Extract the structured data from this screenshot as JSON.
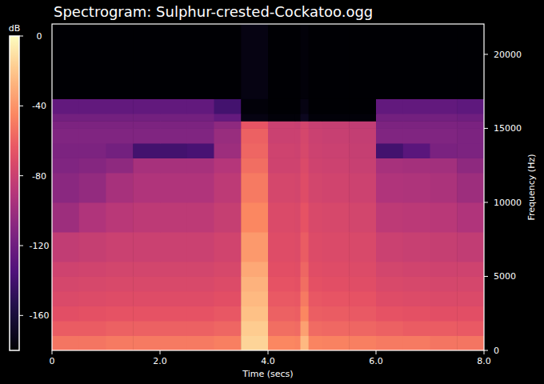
{
  "chart_data": {
    "type": "heatmap",
    "title": "Spectrogram: Sulphur-crested-Cockatoo.ogg",
    "x_label": "Time (secs)",
    "y_label": "Frequency (Hz)",
    "xlim": [
      0,
      8
    ],
    "ylim": [
      0,
      22050
    ],
    "xticks": [
      0,
      {
        "value": 2,
        "label": "2.0"
      },
      {
        "value": 4,
        "label": "4.0"
      },
      {
        "value": 6,
        "label": "6.0"
      },
      {
        "value": 8,
        "label": "8.0"
      }
    ],
    "yticks": [
      0,
      5000,
      10000,
      15000,
      20000
    ],
    "x_edges": [
      0,
      0.5,
      1,
      1.5,
      2,
      2.5,
      3,
      3.5,
      4,
      4.5,
      4.6,
      4.75,
      5,
      5.5,
      6,
      6.5,
      7,
      7.5,
      8
    ],
    "y_edges": [
      0,
      1000,
      2000,
      3000,
      4000,
      5000,
      6000,
      8000,
      10000,
      12000,
      13000,
      14000,
      15000,
      15500,
      16000,
      17000,
      22050
    ],
    "cells": [
      [
        -52,
        -52,
        -50,
        -50,
        -50,
        -50,
        -48,
        -15,
        -45,
        -46,
        -25,
        -46,
        -47,
        -48,
        -50,
        -50,
        -52,
        -52
      ],
      [
        -62,
        -62,
        -60,
        -60,
        -60,
        -60,
        -58,
        -18,
        -55,
        -56,
        -35,
        -56,
        -57,
        -58,
        -60,
        -62,
        -62,
        -63
      ],
      [
        -68,
        -67,
        -66,
        -66,
        -66,
        -66,
        -64,
        -22,
        -60,
        -61,
        -45,
        -61,
        -62,
        -63,
        -66,
        -67,
        -68,
        -68
      ],
      [
        -72,
        -71,
        -70,
        -70,
        -70,
        -70,
        -68,
        -25,
        -63,
        -64,
        -50,
        -64,
        -65,
        -66,
        -70,
        -71,
        -72,
        -72
      ],
      [
        -75,
        -74,
        -73,
        -73,
        -73,
        -73,
        -71,
        -28,
        -66,
        -67,
        -55,
        -67,
        -68,
        -69,
        -73,
        -74,
        -75,
        -75
      ],
      [
        -78,
        -77,
        -76,
        -76,
        -76,
        -76,
        -74,
        -32,
        -68,
        -69,
        -58,
        -69,
        -70,
        -71,
        -76,
        -77,
        -78,
        -78
      ],
      [
        -84,
        -82,
        -80,
        -80,
        -80,
        -80,
        -77,
        -38,
        -70,
        -71,
        -62,
        -71,
        -72,
        -73,
        -80,
        -81,
        -82,
        -84
      ],
      [
        -100,
        -92,
        -88,
        -86,
        -86,
        -86,
        -82,
        -45,
        -72,
        -73,
        -66,
        -73,
        -74,
        -76,
        -86,
        -87,
        -88,
        -92
      ],
      [
        -108,
        -104,
        -96,
        -92,
        -92,
        -92,
        -86,
        -50,
        -75,
        -76,
        -70,
        -76,
        -77,
        -79,
        -92,
        -93,
        -94,
        -100
      ],
      [
        -112,
        -110,
        -106,
        -96,
        -96,
        -96,
        -90,
        -55,
        -78,
        -78,
        -72,
        -78,
        -79,
        -81,
        -96,
        -97,
        -98,
        -106
      ],
      [
        -114,
        -114,
        -118,
        -140,
        -140,
        -138,
        -100,
        -58,
        -78,
        -79,
        -74,
        -79,
        -80,
        -82,
        -140,
        -130,
        -115,
        -114
      ],
      [
        -112,
        -112,
        -112,
        -112,
        -112,
        -112,
        -102,
        -60,
        -80,
        -80,
        -75,
        -80,
        -81,
        -83,
        -112,
        -112,
        -112,
        -114
      ],
      [
        -114,
        -114,
        -114,
        -114,
        -114,
        -114,
        -106,
        -65,
        -80,
        -81,
        -76,
        -81,
        -82,
        -84,
        -114,
        -114,
        -114,
        -115
      ],
      [
        -118,
        -118,
        -118,
        -118,
        -118,
        -118,
        -125,
        -175,
        -178,
        -178,
        -170,
        -178,
        -178,
        -178,
        -118,
        -118,
        -118,
        -120
      ],
      [
        -126,
        -126,
        -126,
        -126,
        -126,
        -126,
        -140,
        -178,
        -180,
        -180,
        -175,
        -180,
        -180,
        -180,
        -126,
        -126,
        -126,
        -128
      ],
      [
        -180,
        -180,
        -180,
        -180,
        -180,
        -180,
        -180,
        -175,
        -180,
        -180,
        -178,
        -180,
        -180,
        -180,
        -180,
        -180,
        -180,
        -180
      ]
    ],
    "colorbar": {
      "label": "dB",
      "range": [
        -180,
        0
      ],
      "ticks": [
        0,
        -40,
        -80,
        -120,
        -160
      ]
    }
  }
}
